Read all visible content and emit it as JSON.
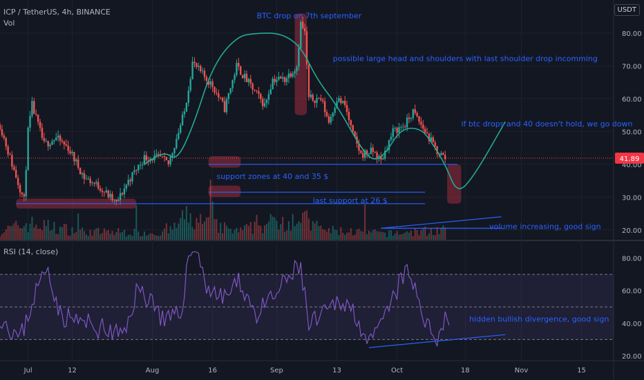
{
  "header": {
    "symbol_line": "ICP / TetherUS, 4h, BINANCE",
    "volume_label": "Vol",
    "currency_badge": "USDT",
    "rsi_label": "RSI (14, close)"
  },
  "price_badge": "41.89",
  "chart_data": [
    {
      "type": "candlestick",
      "title": "ICP / TetherUS, 4h, BINANCE",
      "y_ticks": [
        "80.00",
        "70.00",
        "60.00",
        "50.00",
        "40.00",
        "30.00",
        "20.00"
      ],
      "ylim": [
        17,
        88
      ],
      "x_ticks": [
        "Jul",
        "12",
        "Aug",
        "16",
        "Sep",
        "13",
        "Oct",
        "18",
        "Nov",
        "15"
      ],
      "x_tick_days": [
        0,
        11,
        31,
        46,
        62,
        77,
        92,
        109,
        123,
        138
      ],
      "xlim_days": [
        -7,
        146
      ],
      "last_price": 41.89,
      "price_path": [
        {
          "d": -7,
          "v": 52
        },
        {
          "d": -4,
          "v": 40
        },
        {
          "d": -1,
          "v": 29
        },
        {
          "d": 0,
          "v": 50
        },
        {
          "d": 1,
          "v": 58
        },
        {
          "d": 4,
          "v": 46
        },
        {
          "d": 7,
          "v": 48
        },
        {
          "d": 10,
          "v": 45
        },
        {
          "d": 14,
          "v": 36
        },
        {
          "d": 18,
          "v": 33
        },
        {
          "d": 22,
          "v": 28
        },
        {
          "d": 25,
          "v": 35
        },
        {
          "d": 29,
          "v": 42
        },
        {
          "d": 33,
          "v": 42
        },
        {
          "d": 35,
          "v": 40
        },
        {
          "d": 39,
          "v": 56
        },
        {
          "d": 41,
          "v": 71
        },
        {
          "d": 43,
          "v": 68
        },
        {
          "d": 46,
          "v": 64
        },
        {
          "d": 49,
          "v": 57
        },
        {
          "d": 52,
          "v": 70
        },
        {
          "d": 56,
          "v": 63
        },
        {
          "d": 59,
          "v": 58
        },
        {
          "d": 61,
          "v": 66
        },
        {
          "d": 64,
          "v": 66
        },
        {
          "d": 67,
          "v": 70
        },
        {
          "d": 68,
          "v": 83
        },
        {
          "d": 69,
          "v": 80
        },
        {
          "d": 70,
          "v": 60
        },
        {
          "d": 73,
          "v": 60
        },
        {
          "d": 75,
          "v": 53
        },
        {
          "d": 77,
          "v": 60
        },
        {
          "d": 79,
          "v": 58
        },
        {
          "d": 81,
          "v": 49
        },
        {
          "d": 83,
          "v": 43
        },
        {
          "d": 86,
          "v": 44
        },
        {
          "d": 88,
          "v": 41
        },
        {
          "d": 91,
          "v": 50
        },
        {
          "d": 94,
          "v": 52
        },
        {
          "d": 96,
          "v": 56
        },
        {
          "d": 99,
          "v": 50
        },
        {
          "d": 102,
          "v": 44
        },
        {
          "d": 104,
          "v": 41.89
        }
      ],
      "volume_ylim": [
        0,
        60000000
      ],
      "volume_profile_m": [
        {
          "d": -7,
          "v": 8
        },
        {
          "d": 0,
          "v": 16
        },
        {
          "d": 14,
          "v": 8
        },
        {
          "d": 35,
          "v": 7
        },
        {
          "d": 39,
          "v": 22
        },
        {
          "d": 52,
          "v": 8
        },
        {
          "d": 68,
          "v": 24
        },
        {
          "d": 72,
          "v": 10
        },
        {
          "d": 90,
          "v": 6
        },
        {
          "d": 104,
          "v": 10
        }
      ],
      "hhead_shoulders_curve": [
        {
          "d": 29,
          "v": 40
        },
        {
          "d": 34,
          "v": 44
        },
        {
          "d": 37,
          "v": 41
        },
        {
          "d": 41,
          "v": 51
        },
        {
          "d": 46,
          "v": 70
        },
        {
          "d": 52,
          "v": 79
        },
        {
          "d": 57,
          "v": 80
        },
        {
          "d": 63,
          "v": 80
        },
        {
          "d": 68,
          "v": 76
        },
        {
          "d": 72,
          "v": 66
        },
        {
          "d": 77,
          "v": 58
        },
        {
          "d": 83,
          "v": 45
        },
        {
          "d": 86,
          "v": 41
        },
        {
          "d": 89,
          "v": 43
        },
        {
          "d": 93,
          "v": 51
        },
        {
          "d": 98,
          "v": 51
        },
        {
          "d": 101,
          "v": 46
        },
        {
          "d": 104,
          "v": 40
        },
        {
          "d": 107,
          "v": 31
        },
        {
          "d": 111,
          "v": 36
        },
        {
          "d": 119,
          "v": 53
        }
      ],
      "support_lines": [
        {
          "d1": 45,
          "d2": 107,
          "v": 40
        },
        {
          "d1": 45,
          "d2": 99,
          "v": 31.5
        },
        {
          "d1": -3,
          "d2": 99,
          "v": 28
        },
        {
          "d1": 88,
          "d2": 118,
          "v": 20.5
        }
      ],
      "annotations": [
        "BTC drop on 7th september",
        "possible large head and shoulders with last shoulder drop incomming",
        "if btc drops and 40 doesn't hold, we go down",
        "support zones at 40 and 35 $",
        "last support at 26 $",
        "volume increasing, good sign"
      ]
    },
    {
      "type": "line",
      "title": "RSI (14, close)",
      "y_ticks": [
        "80.00",
        "60.00",
        "40.00",
        "20.00"
      ],
      "ylim": [
        17,
        90
      ],
      "upper_band": 70,
      "lower_band": 30,
      "mid_line": 50,
      "rsi_path": [
        {
          "d": -7,
          "v": 45
        },
        {
          "d": -2,
          "v": 30
        },
        {
          "d": 2,
          "v": 60
        },
        {
          "d": 5,
          "v": 75
        },
        {
          "d": 8,
          "v": 45
        },
        {
          "d": 14,
          "v": 40
        },
        {
          "d": 20,
          "v": 35
        },
        {
          "d": 24,
          "v": 32
        },
        {
          "d": 27,
          "v": 60
        },
        {
          "d": 31,
          "v": 55
        },
        {
          "d": 34,
          "v": 40
        },
        {
          "d": 38,
          "v": 45
        },
        {
          "d": 40,
          "v": 80
        },
        {
          "d": 42,
          "v": 88
        },
        {
          "d": 44,
          "v": 65
        },
        {
          "d": 48,
          "v": 55
        },
        {
          "d": 53,
          "v": 65
        },
        {
          "d": 57,
          "v": 45
        },
        {
          "d": 61,
          "v": 55
        },
        {
          "d": 65,
          "v": 68
        },
        {
          "d": 68,
          "v": 75
        },
        {
          "d": 70,
          "v": 38
        },
        {
          "d": 74,
          "v": 45
        },
        {
          "d": 78,
          "v": 55
        },
        {
          "d": 82,
          "v": 45
        },
        {
          "d": 85,
          "v": 25
        },
        {
          "d": 88,
          "v": 38
        },
        {
          "d": 92,
          "v": 60
        },
        {
          "d": 94,
          "v": 72
        },
        {
          "d": 97,
          "v": 58
        },
        {
          "d": 100,
          "v": 35
        },
        {
          "d": 102,
          "v": 32
        },
        {
          "d": 104,
          "v": 45
        },
        {
          "d": 105,
          "v": 40
        }
      ],
      "divergence_line": [
        {
          "d": 85,
          "v": 25
        },
        {
          "d": 119,
          "v": 33
        }
      ],
      "annotations": [
        "hidden bullish divergence, good sign"
      ]
    }
  ],
  "colors": {
    "background": "#131722",
    "up": "#26a69a",
    "down": "#ef5350",
    "rsi_line": "#7e57c2",
    "rsi_band": "#7e57c2",
    "annotation_text": "#2962ff",
    "support_line": "#2962ff",
    "pattern_curve": "#22ab94",
    "highlight": "#9c2c3c",
    "grid": "#1e222d",
    "axis_text": "#b2b5be",
    "price_badge": "#f23645"
  }
}
